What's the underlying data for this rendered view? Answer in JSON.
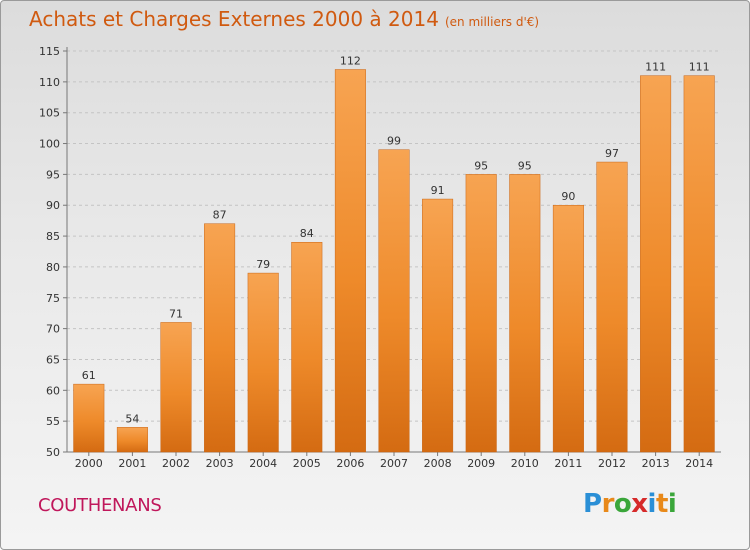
{
  "chart_data": {
    "type": "bar",
    "title": "Achats et Charges Externes 2000 à 2014",
    "subtitle": "(en milliers d'€)",
    "categories": [
      "2000",
      "2001",
      "2002",
      "2003",
      "2004",
      "2005",
      "2006",
      "2007",
      "2008",
      "2009",
      "2010",
      "2011",
      "2012",
      "2013",
      "2014"
    ],
    "values": [
      61,
      54,
      71,
      87,
      79,
      84,
      112,
      99,
      91,
      95,
      95,
      90,
      97,
      111,
      111
    ],
    "ylim": [
      50,
      115
    ],
    "yticks": [
      50,
      55,
      60,
      65,
      70,
      75,
      80,
      85,
      90,
      95,
      100,
      105,
      110,
      115
    ],
    "grid": true,
    "bar_color": "#f08a24"
  },
  "commune": "COUTHENANS",
  "logo": {
    "letters": [
      {
        "ch": "P",
        "color": "#2a8fd6"
      },
      {
        "ch": "r",
        "color": "#e8891a"
      },
      {
        "ch": "o",
        "color": "#3aa63a"
      },
      {
        "ch": "x",
        "color": "#d62a2a"
      },
      {
        "ch": "i",
        "color": "#2a8fd6"
      },
      {
        "ch": "t",
        "color": "#e8891a"
      },
      {
        "ch": "i",
        "color": "#3aa63a"
      }
    ]
  }
}
